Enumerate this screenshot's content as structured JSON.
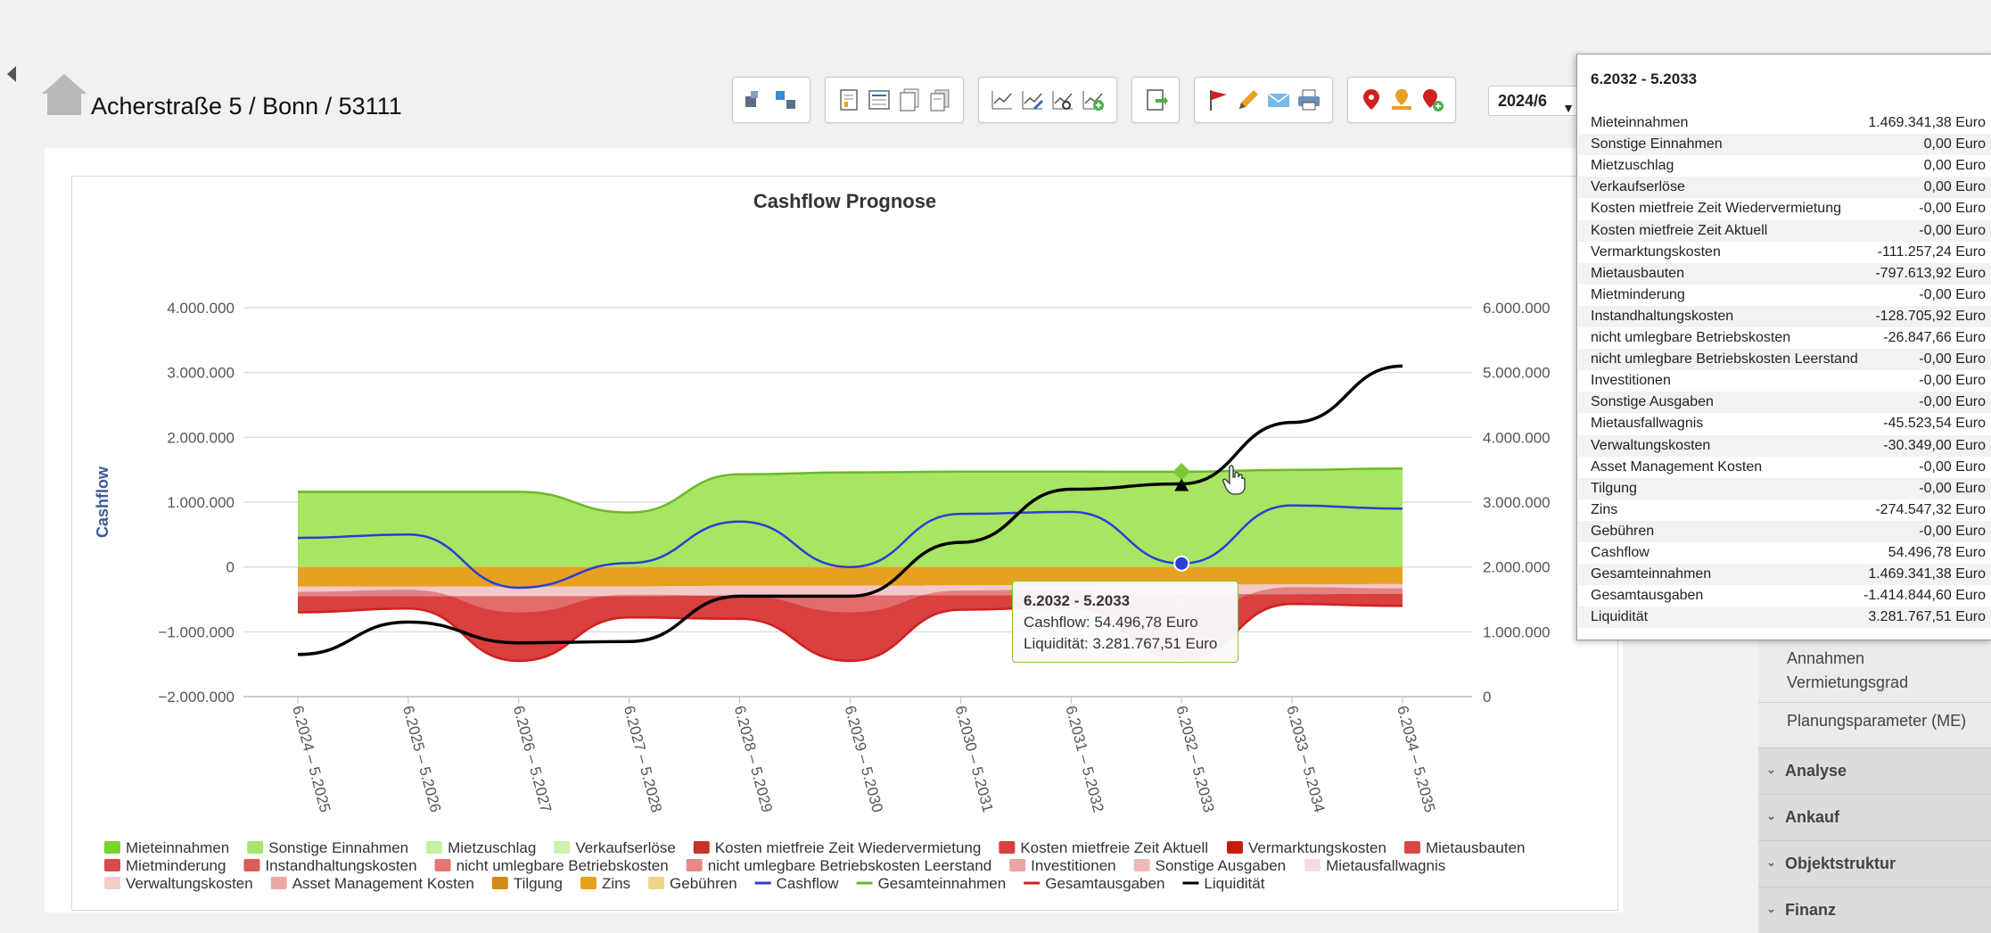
{
  "header": {
    "address": "Acherstraße 5 / Bonn / 53111",
    "year_select": "2024/6"
  },
  "toolbar": {
    "groups": [
      {
        "icons": [
          "merge-icon",
          "split-icon"
        ]
      },
      {
        "icons": [
          "report-icon",
          "report-list-icon",
          "report-stack-icon",
          "report-copy-icon"
        ]
      },
      {
        "icons": [
          "line-chart-icon",
          "line-chart-edit-icon",
          "line-chart-link-icon",
          "line-chart-add-icon"
        ]
      },
      {
        "icons": [
          "export-document-icon"
        ]
      },
      {
        "icons": [
          "flag-icon",
          "pencil-icon",
          "mail-icon",
          "print-icon"
        ]
      },
      {
        "icons": [
          "map-pin-red-icon",
          "map-pin-person-icon",
          "map-pin-add-icon"
        ]
      }
    ]
  },
  "chart_data": {
    "type": "area",
    "title": "Cashflow Prognose",
    "ylabel": "Cashflow",
    "ylim": [
      -2000000,
      4000000
    ],
    "ylim_right": [
      0,
      6000000
    ],
    "y_ticks_left": [
      "−2.000.000",
      "−1.000.000",
      "0",
      "1.000.000",
      "2.000.000",
      "3.000.000",
      "4.000.000"
    ],
    "y_ticks_right": [
      "0",
      "1.000.000",
      "2.000.000",
      "3.000.000",
      "4.000.000",
      "5.000.000",
      "6.000.000"
    ],
    "categories": [
      "6.2024 – 5.2025",
      "6.2025 – 5.2026",
      "6.2026 – 5.2027",
      "6.2027 – 5.2028",
      "6.2028 – 5.2029",
      "6.2029 – 5.2030",
      "6.2030 – 5.2031",
      "6.2031 – 5.2032",
      "6.2032 – 5.2033",
      "6.2033 – 5.2034",
      "6.2034 – 5.2035"
    ],
    "grid": true,
    "legend_placement": "bottom",
    "series": [
      {
        "name": "Gesamteinnahmen",
        "type": "area",
        "color": "#a3e45a",
        "values": [
          1160000,
          1160000,
          1160000,
          840000,
          1430000,
          1460000,
          1470000,
          1470000,
          1469341,
          1500000,
          1520000
        ]
      },
      {
        "name": "Zins",
        "type": "area",
        "color": "#e8a020",
        "values": [
          -300000,
          -300000,
          -300000,
          -300000,
          -290000,
          -290000,
          -285000,
          -280000,
          -274547,
          -270000,
          -265000
        ]
      },
      {
        "name": "Gesamtausgaben",
        "type": "area",
        "color": "#d94040",
        "values": [
          -700000,
          -640000,
          -1450000,
          -780000,
          -800000,
          -1450000,
          -660000,
          -620000,
          -1414845,
          -570000,
          -600000
        ]
      },
      {
        "name": "Cashflow",
        "type": "line",
        "color": "#2a3ed6",
        "values": [
          450000,
          500000,
          -320000,
          60000,
          700000,
          0,
          820000,
          850000,
          54497,
          950000,
          900000
        ]
      },
      {
        "name": "Liquidität",
        "type": "line",
        "axis": "right",
        "color": "#000000",
        "values": [
          650000,
          1150000,
          830000,
          850000,
          1550000,
          1550000,
          2380000,
          3200000,
          3281768,
          4230000,
          5100000
        ]
      }
    ],
    "legend": [
      {
        "name": "Mieteinnahmen",
        "color": "#77d42a",
        "kind": "box"
      },
      {
        "name": "Sonstige Einnahmen",
        "color": "#a8e468",
        "kind": "box"
      },
      {
        "name": "Mietzuschlag",
        "color": "#c6f0a4",
        "kind": "box"
      },
      {
        "name": "Verkaufserlöse",
        "color": "#cdf2b0",
        "kind": "box"
      },
      {
        "name": "Kosten mietfreie Zeit Wiedervermietung",
        "color": "#c9302c",
        "kind": "box"
      },
      {
        "name": "Kosten mietfreie Zeit Aktuell",
        "color": "#d94040",
        "kind": "box"
      },
      {
        "name": "Vermarktungskosten",
        "color": "#cc1a10",
        "kind": "box"
      },
      {
        "name": "Mietausbauten",
        "color": "#d64848",
        "kind": "box"
      },
      {
        "name": "Mietminderung",
        "color": "#d94a4a",
        "kind": "box"
      },
      {
        "name": "Instandhaltungskosten",
        "color": "#db5c58",
        "kind": "box"
      },
      {
        "name": "nicht umlegbare Betriebskosten",
        "color": "#e27674",
        "kind": "box"
      },
      {
        "name": "nicht umlegbare Betriebskosten Leerstand",
        "color": "#e58a88",
        "kind": "box"
      },
      {
        "name": "Investitionen",
        "color": "#eba4a4",
        "kind": "box"
      },
      {
        "name": "Sonstige Ausgaben",
        "color": "#f0baba",
        "kind": "box"
      },
      {
        "name": "Mietausfallwagnis",
        "color": "#f6dcdc",
        "kind": "box"
      },
      {
        "name": "Verwaltungskosten",
        "color": "#f3cccc",
        "kind": "box"
      },
      {
        "name": "Asset Management Kosten",
        "color": "#eca8a8",
        "kind": "box"
      },
      {
        "name": "Tilgung",
        "color": "#d48a1a",
        "kind": "box"
      },
      {
        "name": "Zins",
        "color": "#e8a020",
        "kind": "box"
      },
      {
        "name": "Gebühren",
        "color": "#f0d48a",
        "kind": "box"
      },
      {
        "name": "Cashflow",
        "color": "#2a3ed6",
        "kind": "line"
      },
      {
        "name": "Gesamteinnahmen",
        "color": "#6cb82a",
        "kind": "line"
      },
      {
        "name": "Gesamtausgaben",
        "color": "#d02020",
        "kind": "line"
      },
      {
        "name": "Liquidität",
        "color": "#000000",
        "kind": "line"
      }
    ],
    "highlight_index": 8,
    "tooltip": {
      "title": "6.2032 - 5.2033",
      "line1": "Cashflow: 54.496,78 Euro",
      "line2": "Liquidität: 3.281.767,51 Euro"
    }
  },
  "detail_panel": {
    "title": "6.2032 - 5.2033",
    "rows": [
      {
        "label": "Mieteinnahmen",
        "value": "1.469.341,38 Euro"
      },
      {
        "label": "Sonstige Einnahmen",
        "value": "0,00 Euro"
      },
      {
        "label": "Mietzuschlag",
        "value": "0,00 Euro"
      },
      {
        "label": "Verkaufserlöse",
        "value": "0,00 Euro"
      },
      {
        "label": "Kosten mietfreie Zeit Wiedervermietung",
        "value": "-0,00 Euro"
      },
      {
        "label": "Kosten mietfreie Zeit Aktuell",
        "value": "-0,00 Euro"
      },
      {
        "label": "Vermarktungskosten",
        "value": "-111.257,24 Euro"
      },
      {
        "label": "Mietausbauten",
        "value": "-797.613,92 Euro"
      },
      {
        "label": "Mietminderung",
        "value": "-0,00 Euro"
      },
      {
        "label": "Instandhaltungskosten",
        "value": "-128.705,92 Euro"
      },
      {
        "label": "nicht umlegbare Betriebskosten",
        "value": "-26.847,66 Euro"
      },
      {
        "label": "nicht umlegbare Betriebskosten Leerstand",
        "value": "-0,00 Euro"
      },
      {
        "label": "Investitionen",
        "value": "-0,00 Euro"
      },
      {
        "label": "Sonstige Ausgaben",
        "value": "-0,00 Euro"
      },
      {
        "label": "Mietausfallwagnis",
        "value": "-45.523,54 Euro"
      },
      {
        "label": "Verwaltungskosten",
        "value": "-30.349,00 Euro"
      },
      {
        "label": "Asset Management Kosten",
        "value": "-0,00 Euro"
      },
      {
        "label": "Tilgung",
        "value": "-0,00 Euro"
      },
      {
        "label": "Zins",
        "value": "-274.547,32 Euro"
      },
      {
        "label": "Gebühren",
        "value": "-0,00 Euro"
      },
      {
        "label": "Cashflow",
        "value": "54.496,78 Euro"
      },
      {
        "label": "Gesamteinnahmen",
        "value": "1.469.341,38 Euro"
      },
      {
        "label": "Gesamtausgaben",
        "value": "-1.414.844,60 Euro"
      },
      {
        "label": "Liquidität",
        "value": "3.281.767,51 Euro"
      }
    ]
  },
  "sidebar": {
    "sub_items": [
      "Annahmen Vermietungsgrad",
      "Planungsparameter (ME)"
    ],
    "sections": [
      "Analyse",
      "Ankauf",
      "Objektstruktur",
      "Finanz"
    ]
  }
}
